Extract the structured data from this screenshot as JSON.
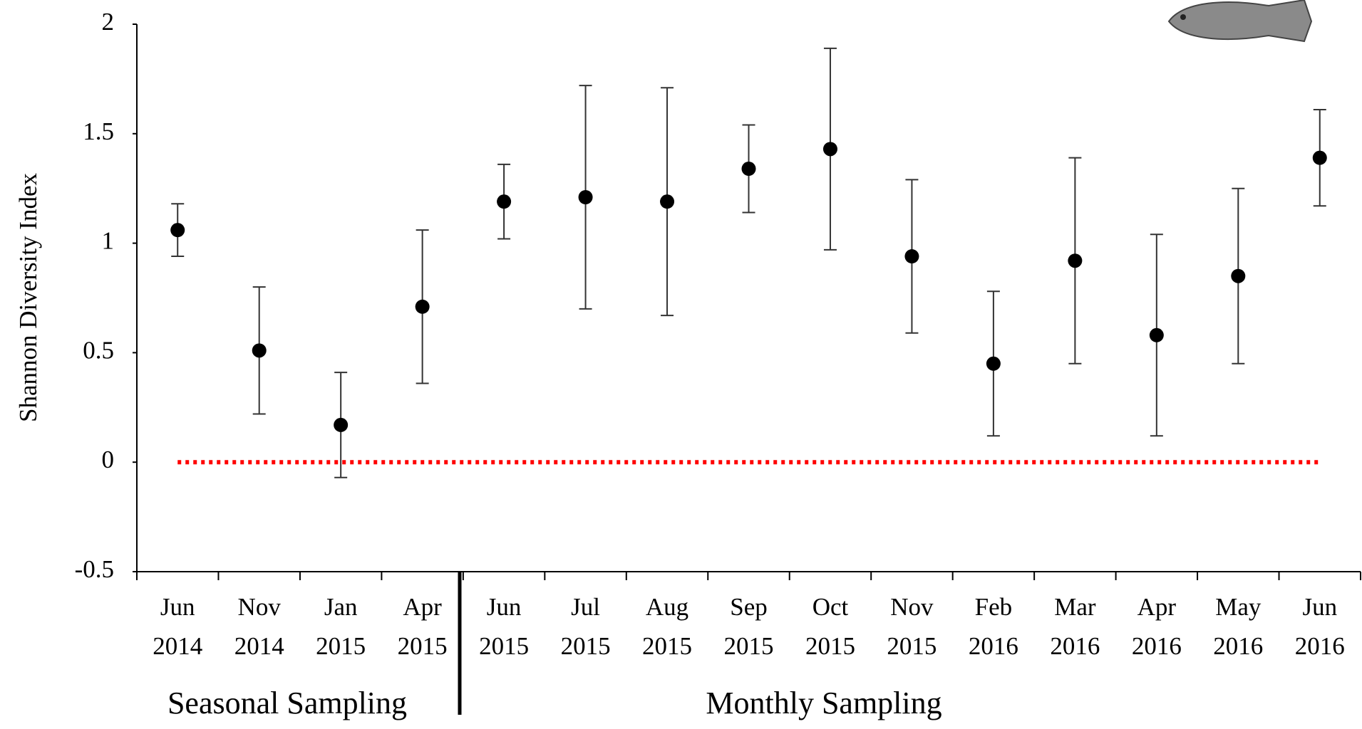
{
  "chart_data": {
    "type": "scatter",
    "y_label": "Shannon Diversity Index",
    "categories": [
      [
        "Jun",
        "2014"
      ],
      [
        "Nov",
        "2014"
      ],
      [
        "Jan",
        "2015"
      ],
      [
        "Apr",
        "2015"
      ],
      [
        "Jun",
        "2015"
      ],
      [
        "Jul",
        "2015"
      ],
      [
        "Aug",
        "2015"
      ],
      [
        "Sep",
        "2015"
      ],
      [
        "Oct",
        "2015"
      ],
      [
        "Nov",
        "2015"
      ],
      [
        "Feb",
        "2016"
      ],
      [
        "Mar",
        "2016"
      ],
      [
        "Apr",
        "2016"
      ],
      [
        "May",
        "2016"
      ],
      [
        "Jun",
        "2016"
      ]
    ],
    "values": [
      1.06,
      0.51,
      0.17,
      0.71,
      1.19,
      1.21,
      1.19,
      1.34,
      1.43,
      0.94,
      0.45,
      0.92,
      0.58,
      0.85,
      1.39
    ],
    "errors": [
      0.12,
      0.29,
      0.24,
      0.35,
      0.17,
      0.51,
      0.52,
      0.2,
      0.46,
      0.35,
      0.33,
      0.47,
      0.46,
      0.4,
      0.22
    ],
    "color": "#000000",
    "ylim": [
      -0.5,
      2
    ],
    "yticks": [
      -0.5,
      0,
      0.5,
      1,
      1.5,
      2
    ],
    "reference_line": {
      "value": 0,
      "color": "#ff0000"
    },
    "group_labels": [
      "Seasonal Sampling",
      "Monthly Sampling"
    ]
  }
}
